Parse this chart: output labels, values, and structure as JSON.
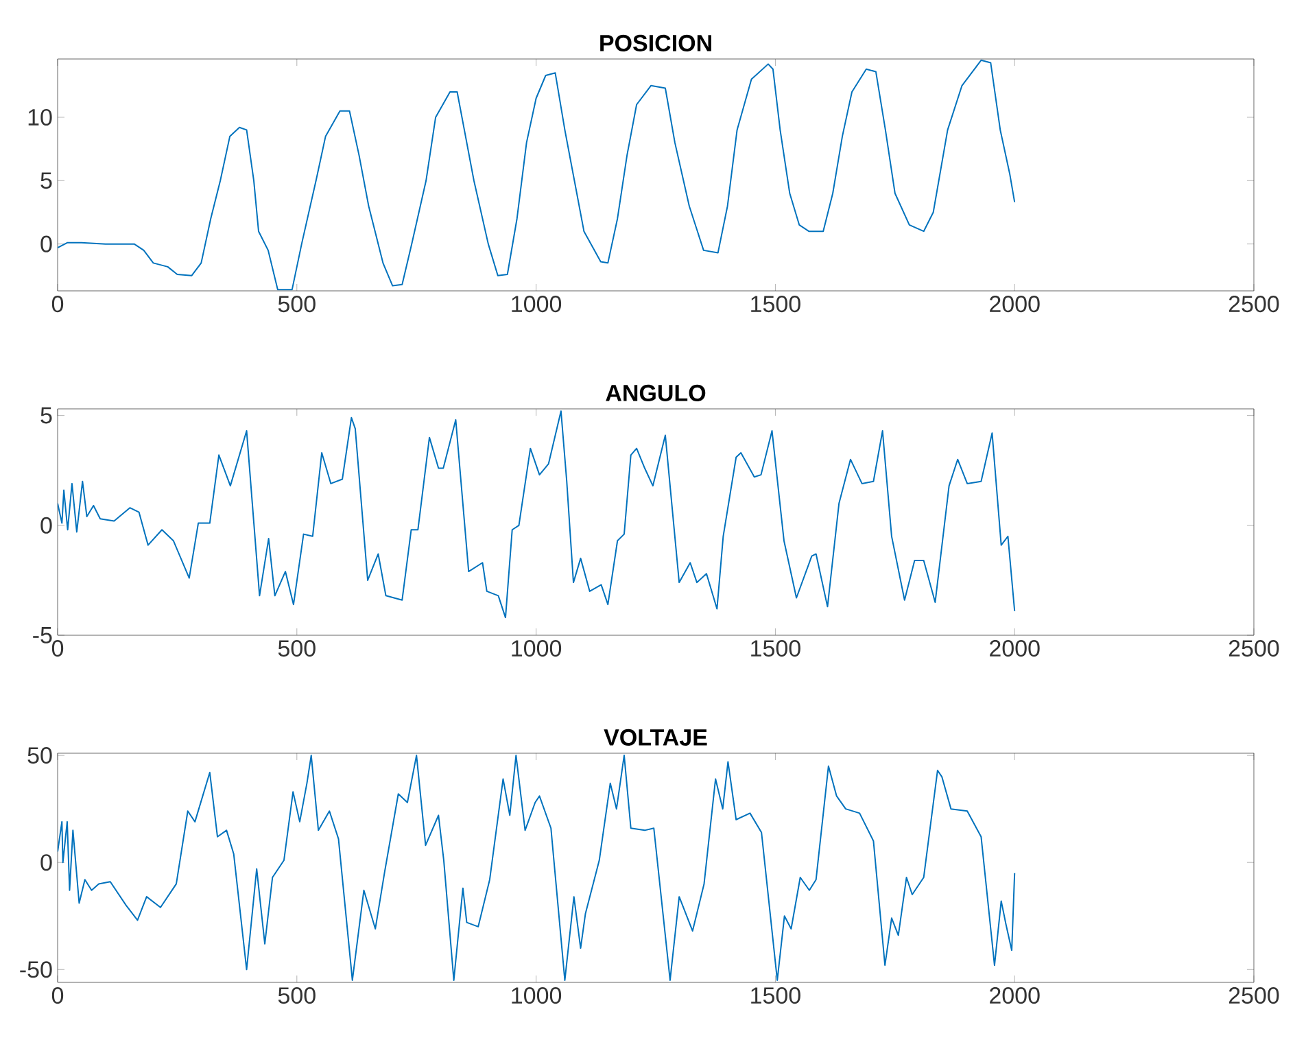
{
  "chart_data": [
    {
      "type": "line",
      "title": "POSICION",
      "color": "#0072bd",
      "xlim": [
        0,
        2500
      ],
      "xticks": [
        0,
        500,
        1000,
        1500,
        2000,
        2500
      ],
      "ylim": [
        -3.7,
        14.6
      ],
      "yticks": [
        0,
        5,
        10
      ],
      "x": [
        0,
        20,
        50,
        100,
        160,
        180,
        200,
        230,
        250,
        280,
        300,
        320,
        340,
        360,
        380,
        395,
        410,
        420,
        440,
        460,
        490,
        510,
        540,
        560,
        590,
        610,
        630,
        650,
        680,
        700,
        720,
        740,
        770,
        790,
        820,
        835,
        850,
        870,
        900,
        920,
        940,
        960,
        980,
        1000,
        1020,
        1040,
        1060,
        1080,
        1100,
        1135,
        1150,
        1170,
        1190,
        1210,
        1240,
        1270,
        1290,
        1320,
        1350,
        1380,
        1400,
        1420,
        1450,
        1485,
        1495,
        1510,
        1530,
        1550,
        1570,
        1600,
        1620,
        1640,
        1660,
        1690,
        1710,
        1730,
        1750,
        1780,
        1810,
        1830,
        1860,
        1890,
        1930,
        1950,
        1970,
        1990,
        2000
      ],
      "values": [
        -0.3,
        0.1,
        0.1,
        0.0,
        0.0,
        -0.5,
        -1.5,
        -1.8,
        -2.4,
        -2.5,
        -1.5,
        2,
        5,
        8.5,
        9.2,
        9.0,
        5,
        1,
        -0.5,
        -3.6,
        -3.6,
        0,
        5,
        8.5,
        10.5,
        10.5,
        7,
        3,
        -1.5,
        -3.3,
        -3.2,
        0,
        5,
        10,
        12.0,
        12.0,
        9,
        5,
        0,
        -2.5,
        -2.4,
        2,
        8,
        11.5,
        13.3,
        13.5,
        9,
        5,
        1,
        -1.4,
        -1.5,
        2,
        7,
        11,
        12.5,
        12.3,
        8,
        3,
        -0.5,
        -0.7,
        3,
        9,
        13,
        14.2,
        13.8,
        9,
        4,
        1.5,
        1.0,
        1.0,
        4,
        8.5,
        12,
        13.8,
        13.6,
        9,
        4,
        1.5,
        1.0,
        2.5,
        9,
        12.5,
        14.5,
        14.3,
        9,
        5.5,
        3.3
      ]
    },
    {
      "type": "line",
      "title": "ANGULO",
      "color": "#0072bd",
      "xlim": [
        0,
        2500
      ],
      "xticks": [
        0,
        500,
        1000,
        1500,
        2000,
        2500
      ],
      "ylim": [
        -5,
        5.3
      ],
      "yticks": [
        -5,
        0,
        5
      ],
      "x": [
        0,
        9,
        13,
        21,
        30,
        40,
        52,
        61,
        75,
        89,
        118,
        151,
        170,
        189,
        218,
        242,
        275,
        294,
        318,
        337,
        361,
        395,
        422,
        441,
        454,
        476,
        493,
        514,
        533,
        552,
        571,
        595,
        614,
        622,
        648,
        670,
        686,
        720,
        739,
        753,
        777,
        796,
        806,
        832,
        859,
        888,
        897,
        921,
        936,
        950,
        964,
        988,
        1007,
        1026,
        1052,
        1064,
        1078,
        1093,
        1112,
        1136,
        1150,
        1170,
        1184,
        1198,
        1210,
        1227,
        1244,
        1270,
        1299,
        1322,
        1336,
        1356,
        1378,
        1391,
        1418,
        1428,
        1456,
        1470,
        1493,
        1518,
        1544,
        1576,
        1585,
        1609,
        1633,
        1657,
        1681,
        1705,
        1724,
        1743,
        1770,
        1791,
        1810,
        1834,
        1863,
        1881,
        1901,
        1930,
        1953,
        1972,
        1986,
        2000
      ],
      "values": [
        1.0,
        0.1,
        1.6,
        -0.2,
        1.9,
        -0.3,
        2.0,
        0.4,
        0.9,
        0.3,
        0.2,
        0.8,
        0.6,
        -0.9,
        -0.2,
        -0.7,
        -2.4,
        0.1,
        0.1,
        3.2,
        1.8,
        4.3,
        -3.2,
        -0.6,
        -3.2,
        -2.1,
        -3.6,
        -0.4,
        -0.5,
        3.3,
        1.9,
        2.1,
        4.9,
        4.4,
        -2.5,
        -1.3,
        -3.2,
        -3.4,
        -0.2,
        -0.2,
        4.0,
        2.6,
        2.6,
        4.8,
        -2.1,
        -1.7,
        -3.0,
        -3.2,
        -4.2,
        -0.2,
        0.0,
        3.5,
        2.3,
        2.8,
        5.2,
        2.0,
        -2.6,
        -1.5,
        -3.0,
        -2.7,
        -3.6,
        -0.7,
        -0.4,
        3.2,
        3.5,
        2.6,
        1.8,
        4.1,
        -2.6,
        -1.7,
        -2.6,
        -2.2,
        -3.8,
        -0.5,
        3.1,
        3.3,
        2.2,
        2.3,
        4.3,
        -0.7,
        -3.3,
        -1.4,
        -1.3,
        -3.7,
        1.0,
        3.0,
        1.9,
        2.0,
        4.3,
        -0.5,
        -3.4,
        -1.6,
        -1.6,
        -3.5,
        1.8,
        3.0,
        1.9,
        2.0,
        4.2,
        -0.9,
        -0.5,
        -3.9
      ]
    },
    {
      "type": "line",
      "title": "VOLTAJE",
      "color": "#0072bd",
      "xlim": [
        0,
        2500
      ],
      "xticks": [
        0,
        500,
        1000,
        1500,
        2000,
        2500
      ],
      "ylim": [
        -56,
        51
      ],
      "yticks": [
        -50,
        0,
        50
      ],
      "x": [
        0,
        9,
        11,
        20,
        25,
        32,
        45,
        57,
        71,
        86,
        110,
        143,
        167,
        186,
        215,
        248,
        272,
        287,
        318,
        334,
        353,
        368,
        395,
        416,
        433,
        449,
        473,
        492,
        506,
        521,
        530,
        545,
        568,
        587,
        616,
        640,
        664,
        683,
        712,
        731,
        750,
        769,
        796,
        807,
        828,
        847,
        855,
        879,
        903,
        931,
        945,
        958,
        977,
        998,
        1007,
        1031,
        1060,
        1079,
        1093,
        1103,
        1132,
        1155,
        1168,
        1184,
        1198,
        1227,
        1246,
        1280,
        1299,
        1327,
        1351,
        1375,
        1390,
        1401,
        1418,
        1447,
        1471,
        1504,
        1519,
        1533,
        1552,
        1571,
        1585,
        1611,
        1628,
        1647,
        1676,
        1705,
        1729,
        1743,
        1757,
        1774,
        1786,
        1810,
        1839,
        1848,
        1867,
        1901,
        1930,
        1958,
        1972,
        1982,
        1994,
        2000
      ],
      "values": [
        5,
        19,
        0,
        19,
        -13,
        15,
        -19,
        -8,
        -13,
        -10,
        -9,
        -20,
        -27,
        -16,
        -21,
        -10,
        24,
        19,
        42,
        12,
        15,
        4,
        -50,
        -3,
        -38,
        -7,
        1,
        33,
        19,
        37,
        50,
        15,
        24,
        11,
        -55,
        -13,
        -31,
        -5,
        32,
        28,
        50,
        8,
        22,
        1,
        -55,
        -12,
        -28,
        -30,
        -8,
        39,
        22,
        50,
        15,
        28,
        31,
        16,
        -55,
        -16,
        -40,
        -24,
        1,
        37,
        25,
        50,
        16,
        15,
        16,
        -55,
        -16,
        -32,
        -10,
        39,
        25,
        47,
        20,
        23,
        14,
        -55,
        -25,
        -31,
        -7,
        -13,
        -8,
        45,
        31,
        25,
        23,
        10,
        -48,
        -26,
        -34,
        -7,
        -15,
        -7,
        43,
        40,
        25,
        24,
        12,
        -48,
        -18,
        -29,
        -41,
        -5
      ]
    }
  ]
}
